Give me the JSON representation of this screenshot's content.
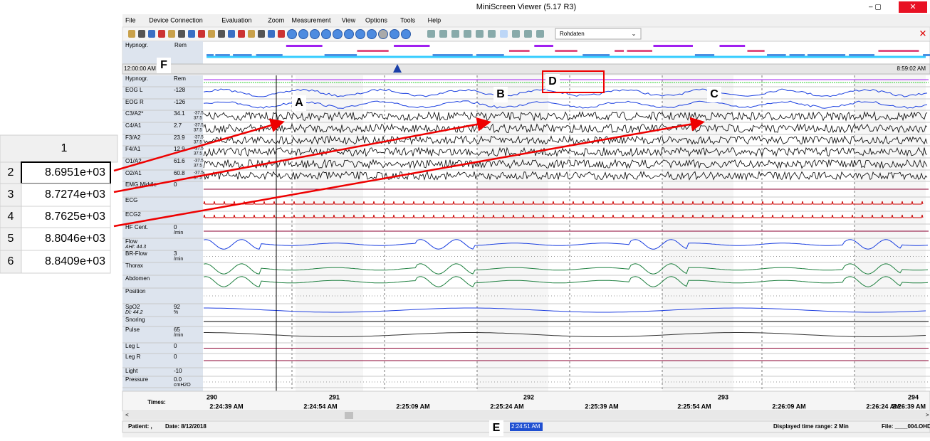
{
  "window": {
    "title": "MiniScreen Viewer (5.17 R3)"
  },
  "menu": [
    "File",
    "Device Connection",
    "Evaluation",
    "Zoom",
    "Measurement",
    "View",
    "Options",
    "Tools",
    "Help"
  ],
  "toolbar": {
    "dropdown": "Rohdaten"
  },
  "overview": {
    "label": "Hypnogr.",
    "sublabel": "Rem",
    "start": "12:00:00 AM",
    "end": "8:59:02 AM"
  },
  "channels": [
    {
      "name": "Hypnogr.",
      "value": "Rem"
    },
    {
      "name": "EOG L",
      "value": "-128"
    },
    {
      "name": "EOG R",
      "value": "-126"
    },
    {
      "name": "C3/A2*",
      "value": "34.1",
      "scale": [
        "-37.5",
        "37.5"
      ]
    },
    {
      "name": "C4/A1",
      "value": "2.7",
      "scale": [
        "-37.5",
        "37.5"
      ]
    },
    {
      "name": "F3/A2",
      "value": "23.9",
      "scale": [
        "-37.5",
        "37.5"
      ]
    },
    {
      "name": "F4/A1",
      "value": "12.9",
      "scale": [
        "-37.5",
        "37.5"
      ]
    },
    {
      "name": "O1/A2",
      "value": "61.6",
      "scale": [
        "-37.5",
        "37.5"
      ]
    },
    {
      "name": "O2/A1",
      "value": "60.8",
      "scale": [
        "-37.5",
        "37.5"
      ]
    },
    {
      "name": "EMG Middle",
      "value": "0"
    },
    {
      "name": "ECG"
    },
    {
      "name": "ECG2"
    },
    {
      "name": "HF Cent.",
      "value": "0",
      "unit": "/min"
    },
    {
      "name": "Flow",
      "sub": "AHI: 44.3"
    },
    {
      "name": "BR-Flow",
      "value": "3",
      "unit": "/min"
    },
    {
      "name": "Thorax"
    },
    {
      "name": "Abdomen"
    },
    {
      "name": "Position"
    },
    {
      "name": "SpO2",
      "value": "92",
      "unit": "%",
      "sub": "DI: 44.2"
    },
    {
      "name": "Snoring"
    },
    {
      "name": "Pulse",
      "value": "65",
      "unit": "/min"
    },
    {
      "name": "Leg L",
      "value": "0"
    },
    {
      "name": "Leg R",
      "value": "0"
    },
    {
      "name": "Light",
      "value": "-10"
    },
    {
      "name": "Pressure",
      "value": "0.0",
      "unit": "cmH2O"
    }
  ],
  "times": {
    "label": "Times:",
    "epochs": [
      "290",
      "291",
      "292",
      "293",
      "294"
    ],
    "clock": [
      "2:24:39 AM",
      "2:24:54 AM",
      "2:25:09 AM",
      "2:25:24 AM",
      "2:25:39 AM",
      "2:25:54 AM",
      "2:26:09 AM",
      "2:26:24 AM",
      "2:26:39 AM"
    ]
  },
  "status": {
    "patient": "Patient: ,",
    "date": "Date: 8/12/2018",
    "cursor": "2:24:51 AM",
    "range": "Displayed time range: 2 Min",
    "file": "File: ____004.OHD"
  },
  "table": {
    "header": "1",
    "rows": [
      [
        "2",
        "8.6951e+03"
      ],
      [
        "3",
        "8.7274e+03"
      ],
      [
        "4",
        "8.7625e+03"
      ],
      [
        "5",
        "8.8046e+03"
      ],
      [
        "6",
        "8.8409e+03"
      ]
    ]
  },
  "annotations": [
    "A",
    "B",
    "C",
    "D",
    "E",
    "F"
  ]
}
